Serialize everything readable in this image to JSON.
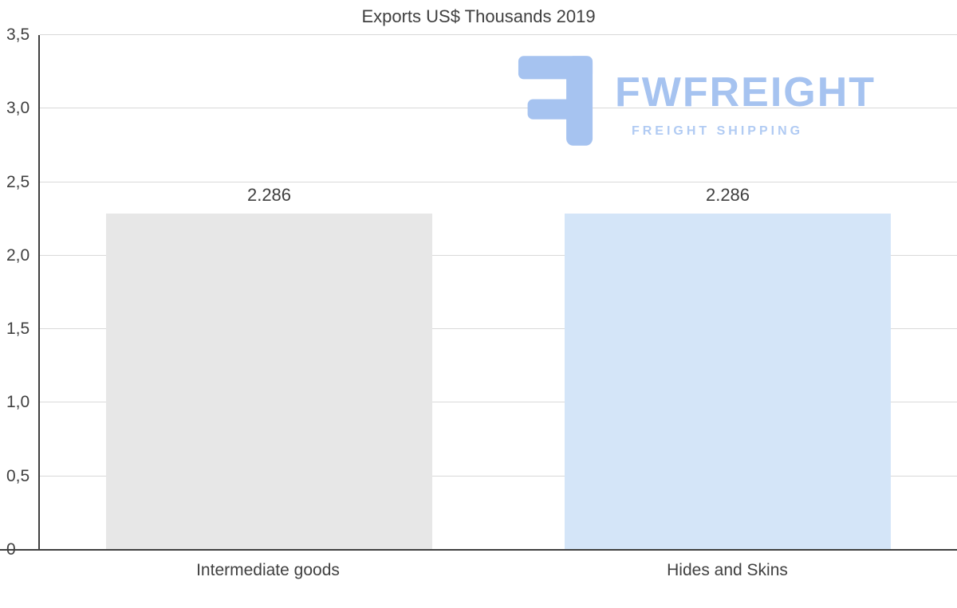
{
  "title": "Exports US$ Thousands 2019",
  "watermark": {
    "brand": "FWFREIGHT",
    "tagline": "FREIGHT SHIPPING",
    "color": "#a6c3f0",
    "tagline_color": "#b1cbf3"
  },
  "colors": {
    "axis": "#404040",
    "gridline": "#d9d9d9",
    "text": "#404040"
  },
  "chart_data": {
    "type": "bar",
    "title": "Exports US$ Thousands 2019",
    "categories": [
      "Intermediate goods",
      "Hides and Skins"
    ],
    "values": [
      2.286,
      2.286
    ],
    "value_labels": [
      "2.286",
      "2.286"
    ],
    "bar_colors": [
      "#e7e7e7",
      "#d4e5f8"
    ],
    "xlabel": "",
    "ylabel": "",
    "ylim": [
      0,
      3.5
    ],
    "ytick_values": [
      0,
      0.5,
      1.0,
      1.5,
      2.0,
      2.5,
      3.0,
      3.5
    ],
    "ytick_labels": [
      "0",
      "0,5",
      "1,0",
      "1,5",
      "2,0",
      "2,5",
      "3,0",
      "3,5"
    ],
    "grid": true,
    "legend": "none"
  }
}
